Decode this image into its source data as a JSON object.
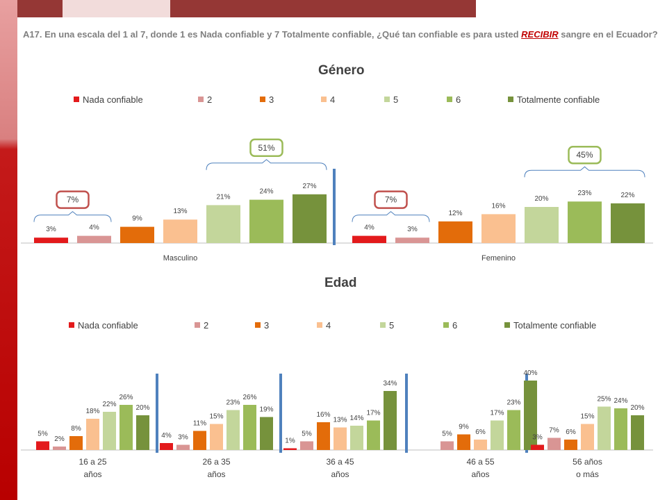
{
  "question": {
    "before": "A17. En una escala del 1 al 7, donde 1 es Nada confiable y 7 Totalmente confiable, ¿Qué tan confiable es para usted ",
    "emph": "RECIBIR",
    "after": " sangre en el Ecuador?"
  },
  "legend_labels": [
    "Nada confiable",
    "2",
    "3",
    "4",
    "5",
    "6",
    "Totalmente confiable"
  ],
  "colors": [
    "#e31a1c",
    "#d99594",
    "#e36c0a",
    "#fac090",
    "#c3d69b",
    "#9bbb59",
    "#76923c"
  ],
  "colors_theme": {
    "top_band_light": "#f2dcdb",
    "top_band_dark": "#953735",
    "separator": "#4f81bd",
    "callout_red": "#c0504d",
    "callout_green": "#9bbb59"
  },
  "chart_data": [
    {
      "type": "bar",
      "title": "Género",
      "categories": [
        "Masculino",
        "Femenino"
      ],
      "series": [
        {
          "name": "Nada confiable",
          "values": [
            3,
            4
          ]
        },
        {
          "name": "2",
          "values": [
            4,
            3
          ]
        },
        {
          "name": "3",
          "values": [
            9,
            12
          ]
        },
        {
          "name": "4",
          "values": [
            13,
            16
          ]
        },
        {
          "name": "5",
          "values": [
            21,
            20
          ]
        },
        {
          "name": "6",
          "values": [
            24,
            23
          ]
        },
        {
          "name": "Totalmente confiable",
          "values": [
            27,
            22
          ]
        }
      ],
      "value_suffix": "%",
      "legend": "top",
      "grid": false,
      "annotations": [
        {
          "category": "Masculino",
          "group": "low",
          "text": "7%"
        },
        {
          "category": "Masculino",
          "group": "high",
          "text": "51%"
        },
        {
          "category": "Femenino",
          "group": "low",
          "text": "7%"
        },
        {
          "category": "Femenino",
          "group": "high",
          "text": "45%"
        }
      ]
    },
    {
      "type": "bar",
      "title": "Edad",
      "categories": [
        "16 a 25 años",
        "26 a 35 años",
        "36 a 45 años",
        "46 a 55 años",
        "56 años o más"
      ],
      "category_lines": [
        [
          "16 a 25",
          "años"
        ],
        [
          "26 a 35",
          "años"
        ],
        [
          "36 a 45",
          "años"
        ],
        [
          "46 a 55",
          "años"
        ],
        [
          "56 años",
          "o más"
        ]
      ],
      "series": [
        {
          "name": "Nada confiable",
          "values": [
            5,
            4,
            1,
            0,
            3
          ]
        },
        {
          "name": "2",
          "values": [
            2,
            3,
            5,
            5,
            7
          ]
        },
        {
          "name": "3",
          "values": [
            8,
            11,
            16,
            9,
            6
          ]
        },
        {
          "name": "4",
          "values": [
            18,
            15,
            13,
            6,
            15
          ]
        },
        {
          "name": "5",
          "values": [
            22,
            23,
            14,
            17,
            25
          ]
        },
        {
          "name": "6",
          "values": [
            26,
            26,
            17,
            23,
            24
          ]
        },
        {
          "name": "Totalmente confiable",
          "values": [
            20,
            19,
            34,
            40,
            20
          ]
        }
      ],
      "value_suffix": "%",
      "legend": "top",
      "grid": false
    }
  ]
}
